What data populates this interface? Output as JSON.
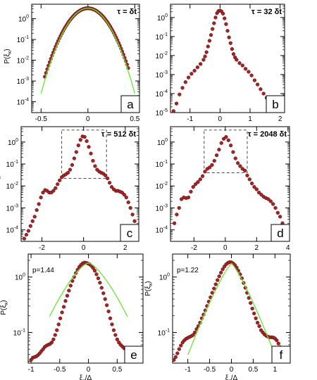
{
  "chart_data": [
    {
      "panel": "a",
      "type": "scatter",
      "log_y": true,
      "annotation": "τ = δt",
      "ylabel": "P(ξ_x)",
      "xlabel": "",
      "xlim": [
        -0.6,
        0.55
      ],
      "ylim": [
        3e-05,
        5
      ],
      "xticks": [
        {
          "v": -0.5,
          "t": "-0.5"
        },
        {
          "v": 0,
          "t": "0"
        },
        {
          "v": 0.5,
          "t": "0.5"
        }
      ],
      "yticks": [
        {
          "v": 0.0001,
          "t": "10",
          "e": "-4"
        },
        {
          "v": 0.001,
          "t": "10",
          "e": "-3"
        },
        {
          "v": 0.01,
          "t": "10",
          "e": "-2"
        },
        {
          "v": 0.1,
          "t": "10",
          "e": "-1"
        },
        {
          "v": 1,
          "t": "10",
          "e": "0"
        }
      ],
      "fit": {
        "type": "gauss",
        "a": 3.2,
        "s": 0.115,
        "xmin": -0.5,
        "xmax": 0.5
      },
      "series": {
        "type": "gauss",
        "a": 3.2,
        "s": 0.118,
        "xmin": -0.46,
        "xmax": 0.43,
        "n": 70
      }
    },
    {
      "panel": "b",
      "type": "scatter",
      "log_y": true,
      "annotation": "τ = 32 δt",
      "ylabel": "",
      "xlabel": "",
      "xlim": [
        -1.65,
        2.15
      ],
      "ylim": [
        1e-05,
        5
      ],
      "xticks": [
        {
          "v": -1,
          "t": "-1"
        },
        {
          "v": 0,
          "t": "0"
        },
        {
          "v": 1,
          "t": "1"
        },
        {
          "v": 2,
          "t": "2"
        }
      ],
      "yticks": [
        {
          "v": 1e-05,
          "t": "10",
          "e": "-5"
        },
        {
          "v": 0.0001,
          "t": "10",
          "e": "-4"
        },
        {
          "v": 0.001,
          "t": "10",
          "e": "-3"
        },
        {
          "v": 0.01,
          "t": "10",
          "e": "-2"
        },
        {
          "v": 0.1,
          "t": "10",
          "e": "-1"
        },
        {
          "v": 1,
          "t": "10",
          "e": "0"
        }
      ],
      "series": {
        "type": "pts",
        "x": [
          -1.55,
          -1.45,
          -1.35,
          -1.25,
          -1.15,
          -1.05,
          -0.95,
          -0.85,
          -0.75,
          -0.65,
          -0.55,
          -0.5,
          -0.45,
          -0.4,
          -0.35,
          -0.3,
          -0.25,
          -0.2,
          -0.15,
          -0.1,
          -0.05,
          0,
          0.05,
          0.1,
          0.15,
          0.2,
          0.25,
          0.3,
          0.35,
          0.4,
          0.45,
          0.5,
          0.55,
          0.65,
          0.75,
          0.85,
          0.95,
          1.05,
          1.15,
          1.25,
          1.35,
          1.45,
          1.55,
          1.65,
          1.75,
          1.85,
          1.95
        ],
        "y": [
          1.2e-05,
          3e-05,
          9e-05,
          0.0002,
          0.0004,
          0.0007,
          0.0011,
          0.0016,
          0.0024,
          0.0036,
          0.006,
          0.009,
          0.015,
          0.03,
          0.06,
          0.12,
          0.25,
          0.5,
          1.0,
          1.7,
          2.2,
          2.3,
          2.1,
          1.6,
          0.9,
          0.45,
          0.2,
          0.09,
          0.045,
          0.022,
          0.012,
          0.008,
          0.006,
          0.004,
          0.003,
          0.002,
          0.0014,
          0.0009,
          0.0005,
          0.0003,
          0.00017,
          0.0001,
          6e-05,
          3.5e-05,
          2e-05,
          1.4e-05,
          1e-05
        ]
      }
    },
    {
      "panel": "c",
      "type": "scatter",
      "log_y": true,
      "annotation": "τ = 512 δt",
      "ylabel": "P(ξ_x)",
      "xlabel": "",
      "xlim": [
        -3.0,
        2.65
      ],
      "ylim": [
        3e-05,
        5
      ],
      "xticks": [
        {
          "v": -2,
          "t": "-2"
        },
        {
          "v": 0,
          "t": "0"
        },
        {
          "v": 2,
          "t": "2"
        }
      ],
      "yticks": [
        {
          "v": 0.0001,
          "t": "10",
          "e": "-4"
        },
        {
          "v": 0.001,
          "t": "10",
          "e": "-3"
        },
        {
          "v": 0.01,
          "t": "10",
          "e": "-2"
        },
        {
          "v": 0.1,
          "t": "10",
          "e": "-1"
        },
        {
          "v": 1,
          "t": "10",
          "e": "0"
        }
      ],
      "box": {
        "x0": -1.05,
        "x1": 1.1,
        "y0": 0.022,
        "y1": 3.5
      },
      "series": {
        "type": "pts",
        "x": [
          -2.85,
          -2.75,
          -2.65,
          -2.55,
          -2.45,
          -2.35,
          -2.25,
          -2.15,
          -2.05,
          -1.95,
          -1.85,
          -1.75,
          -1.65,
          -1.55,
          -1.45,
          -1.35,
          -1.25,
          -1.15,
          -1.05,
          -0.95,
          -0.85,
          -0.75,
          -0.65,
          -0.55,
          -0.45,
          -0.35,
          -0.25,
          -0.15,
          -0.05,
          0.05,
          0.15,
          0.25,
          0.35,
          0.45,
          0.55,
          0.65,
          0.75,
          0.85,
          0.95,
          1.05,
          1.15,
          1.25,
          1.35,
          1.45,
          1.55,
          1.65,
          1.75,
          1.85,
          1.95,
          2.05,
          2.15,
          2.25,
          2.35,
          2.45
        ],
        "y": [
          4e-05,
          6e-05,
          9e-05,
          0.00015,
          0.00025,
          0.0004,
          0.0008,
          0.0015,
          0.003,
          0.005,
          0.0065,
          0.006,
          0.005,
          0.005,
          0.006,
          0.008,
          0.012,
          0.018,
          0.025,
          0.03,
          0.034,
          0.04,
          0.055,
          0.09,
          0.18,
          0.35,
          0.7,
          1.25,
          1.8,
          1.7,
          1.1,
          0.6,
          0.3,
          0.14,
          0.08,
          0.055,
          0.045,
          0.04,
          0.036,
          0.03,
          0.022,
          0.014,
          0.009,
          0.007,
          0.006,
          0.006,
          0.0055,
          0.005,
          0.004,
          0.003,
          0.0018,
          0.001,
          0.0005,
          0.00025
        ]
      }
    },
    {
      "panel": "d",
      "type": "scatter",
      "log_y": true,
      "annotation": "τ = 2048 δt",
      "ylabel": "",
      "xlabel": "",
      "xlim": [
        -3.5,
        4.1
      ],
      "ylim": [
        3e-05,
        5
      ],
      "xticks": [
        {
          "v": -2,
          "t": "-2"
        },
        {
          "v": 0,
          "t": "0"
        },
        {
          "v": 2,
          "t": "2"
        },
        {
          "v": 4,
          "t": "4"
        }
      ],
      "yticks": [
        {
          "v": 0.0001,
          "t": "10",
          "e": "-4"
        },
        {
          "v": 0.001,
          "t": "10",
          "e": "-3"
        },
        {
          "v": 0.01,
          "t": "10",
          "e": "-2"
        },
        {
          "v": 0.1,
          "t": "10",
          "e": "-1"
        },
        {
          "v": 1,
          "t": "10",
          "e": "0"
        }
      ],
      "box": {
        "x0": -1.35,
        "x1": 1.4,
        "y0": 0.04,
        "y1": 3.5
      },
      "series": {
        "type": "pts",
        "x": [
          -3.25,
          -3.1,
          -2.95,
          -2.8,
          -2.65,
          -2.5,
          -2.35,
          -2.2,
          -2.05,
          -1.9,
          -1.75,
          -1.6,
          -1.45,
          -1.3,
          -1.15,
          -1.0,
          -0.85,
          -0.7,
          -0.55,
          -0.4,
          -0.25,
          -0.1,
          0.05,
          0.2,
          0.35,
          0.5,
          0.65,
          0.8,
          0.95,
          1.1,
          1.25,
          1.4,
          1.55,
          1.7,
          1.85,
          2.0,
          2.15,
          2.3,
          2.45,
          2.6,
          2.75,
          2.9,
          3.05,
          3.2,
          3.35,
          3.5,
          3.65,
          3.8
        ],
        "y": [
          0.0002,
          0.0005,
          0.001,
          0.0025,
          0.003,
          0.0028,
          0.003,
          0.0055,
          0.009,
          0.012,
          0.015,
          0.02,
          0.028,
          0.045,
          0.06,
          0.07,
          0.09,
          0.14,
          0.25,
          0.45,
          0.9,
          1.4,
          1.7,
          1.2,
          0.7,
          0.35,
          0.18,
          0.11,
          0.08,
          0.06,
          0.05,
          0.03,
          0.02,
          0.013,
          0.009,
          0.007,
          0.005,
          0.004,
          0.0032,
          0.0028,
          0.0025,
          0.002,
          0.0015,
          0.001,
          0.0006,
          0.0004,
          0.0002,
          0.00015
        ]
      }
    },
    {
      "panel": "e",
      "type": "scatter",
      "log_y": true,
      "annotation": "p=1.44",
      "ylabel": "P(ξ_x)",
      "xlabel": "ξ_x/Δ",
      "xlim": [
        -1.05,
        0.95
      ],
      "ylim": [
        0.028,
        2.6
      ],
      "xticks": [
        {
          "v": -1,
          "t": "-1"
        },
        {
          "v": -0.5,
          "t": "-0.5"
        },
        {
          "v": 0,
          "t": "0"
        },
        {
          "v": 0.5,
          "t": "0.5"
        }
      ],
      "yticks": [
        {
          "v": 0.1,
          "t": "10",
          "e": "-1"
        },
        {
          "v": 1,
          "t": "10",
          "e": "0"
        }
      ],
      "fit": {
        "type": "stretch",
        "a": 1.8,
        "b": 3.9,
        "p": 1.44,
        "xmin": -0.68,
        "xmax": 0.68
      },
      "series": {
        "type": "pts",
        "x": [
          -1.0,
          -0.97,
          -0.94,
          -0.91,
          -0.88,
          -0.85,
          -0.82,
          -0.79,
          -0.76,
          -0.73,
          -0.7,
          -0.67,
          -0.64,
          -0.61,
          -0.58,
          -0.55,
          -0.52,
          -0.49,
          -0.46,
          -0.43,
          -0.4,
          -0.37,
          -0.34,
          -0.31,
          -0.28,
          -0.25,
          -0.22,
          -0.19,
          -0.16,
          -0.13,
          -0.1,
          -0.07,
          -0.04,
          -0.01,
          0.02,
          0.05,
          0.08,
          0.11,
          0.14,
          0.17,
          0.2,
          0.23,
          0.26,
          0.29,
          0.32,
          0.35,
          0.38,
          0.41,
          0.44,
          0.47,
          0.5,
          0.53,
          0.56,
          0.59,
          0.62,
          0.65,
          0.68,
          0.71,
          0.74,
          0.77,
          0.8,
          0.83,
          0.86,
          0.89,
          0.92
        ],
        "y": [
          0.032,
          0.035,
          0.036,
          0.037,
          0.039,
          0.042,
          0.046,
          0.05,
          0.055,
          0.058,
          0.06,
          0.062,
          0.066,
          0.075,
          0.09,
          0.11,
          0.14,
          0.18,
          0.23,
          0.29,
          0.37,
          0.46,
          0.57,
          0.7,
          0.85,
          1.0,
          1.18,
          1.35,
          1.52,
          1.66,
          1.77,
          1.82,
          1.8,
          1.76,
          1.7,
          1.6,
          1.46,
          1.3,
          1.12,
          0.95,
          0.79,
          0.64,
          0.51,
          0.4,
          0.31,
          0.24,
          0.18,
          0.14,
          0.11,
          0.09,
          0.075,
          0.066,
          0.06,
          0.056,
          0.052,
          0.05,
          0.048,
          0.046,
          0.044,
          0.042,
          0.04,
          0.038,
          0.036,
          0.034,
          0.032
        ]
      }
    },
    {
      "panel": "f",
      "type": "scatter",
      "log_y": true,
      "annotation": "p=1.22",
      "ylabel": "P(ξ_x)",
      "xlabel": "ξ_x/Δ",
      "xlim": [
        -1.35,
        1.35
      ],
      "ylim": [
        0.028,
        2.6
      ],
      "xticks": [
        {
          "v": -1,
          "t": "-1"
        },
        {
          "v": -0.5,
          "t": "-0.5"
        },
        {
          "v": 0,
          "t": "0"
        },
        {
          "v": 0.5,
          "t": "0.5"
        },
        {
          "v": 1,
          "t": "1"
        }
      ],
      "yticks": [
        {
          "v": 0.1,
          "t": "10",
          "e": "-1"
        },
        {
          "v": 1,
          "t": "10",
          "e": "0"
        }
      ],
      "fit": {
        "type": "stretch",
        "a": 1.75,
        "b": 3.8,
        "p": 1.22,
        "xmin": -1.0,
        "xmax": 1.0
      },
      "series": {
        "type": "pts",
        "x": [
          -1.32,
          -1.28,
          -1.24,
          -1.2,
          -1.16,
          -1.12,
          -1.08,
          -1.04,
          -1.0,
          -0.96,
          -0.92,
          -0.88,
          -0.84,
          -0.8,
          -0.76,
          -0.72,
          -0.68,
          -0.64,
          -0.6,
          -0.56,
          -0.52,
          -0.48,
          -0.44,
          -0.4,
          -0.36,
          -0.32,
          -0.28,
          -0.24,
          -0.2,
          -0.16,
          -0.12,
          -0.08,
          -0.04,
          0.0,
          0.04,
          0.08,
          0.12,
          0.16,
          0.2,
          0.24,
          0.28,
          0.32,
          0.36,
          0.4,
          0.44,
          0.48,
          0.52,
          0.56,
          0.6,
          0.64,
          0.68,
          0.72,
          0.76,
          0.8,
          0.84,
          0.88,
          0.92,
          0.96,
          1.0,
          1.04,
          1.08,
          1.12,
          1.16,
          1.2,
          1.24,
          1.28,
          1.32
        ],
        "y": [
          0.032,
          0.036,
          0.042,
          0.05,
          0.058,
          0.066,
          0.072,
          0.077,
          0.08,
          0.083,
          0.086,
          0.09,
          0.1,
          0.115,
          0.13,
          0.15,
          0.18,
          0.21,
          0.25,
          0.3,
          0.36,
          0.43,
          0.52,
          0.62,
          0.74,
          0.88,
          1.03,
          1.2,
          1.38,
          1.55,
          1.7,
          1.8,
          1.86,
          1.84,
          1.76,
          1.64,
          1.48,
          1.3,
          1.12,
          0.95,
          0.78,
          0.64,
          0.52,
          0.42,
          0.34,
          0.27,
          0.22,
          0.18,
          0.15,
          0.13,
          0.11,
          0.1,
          0.092,
          0.087,
          0.084,
          0.082,
          0.082,
          0.081,
          0.078,
          0.072,
          0.063,
          0.054,
          0.046,
          0.04,
          0.035,
          0.032,
          0.03
        ]
      }
    }
  ]
}
